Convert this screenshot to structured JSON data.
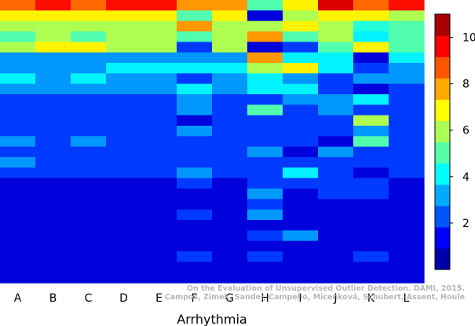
{
  "chart_data": {
    "type": "heatmap",
    "xlabel": "Arrhythmia",
    "categories": [
      "A",
      "B",
      "C",
      "D",
      "E",
      "F",
      "G",
      "H",
      "I",
      "J",
      "K",
      "L"
    ],
    "row_count": 27,
    "color_scale": {
      "min": 0,
      "max": 11,
      "ticks": [
        2,
        4,
        6,
        8,
        10
      ]
    },
    "columns": [
      {
        "name": "A",
        "values": [
          8.5,
          7,
          6,
          5,
          6,
          3,
          3,
          4,
          3,
          2,
          2,
          2,
          2,
          3,
          2,
          3,
          2,
          1,
          1,
          1,
          1,
          1,
          1,
          1,
          1,
          1,
          1
        ]
      },
      {
        "name": "B",
        "values": [
          9.5,
          7,
          6,
          6,
          7,
          3,
          3,
          3,
          3,
          2,
          2,
          2,
          2,
          2,
          2,
          2,
          2,
          1,
          1,
          1,
          1,
          1,
          1,
          1,
          1,
          1,
          1
        ]
      },
      {
        "name": "C",
        "values": [
          8.5,
          7,
          6,
          5,
          7,
          3,
          3,
          4,
          3,
          2,
          2,
          2,
          2,
          3,
          2,
          2,
          2,
          1,
          1,
          1,
          1,
          1,
          1,
          1,
          1,
          1,
          1
        ]
      },
      {
        "name": "D",
        "values": [
          9.5,
          7,
          6,
          6,
          6,
          3,
          4,
          3,
          3,
          2,
          2,
          2,
          2,
          2,
          2,
          2,
          2,
          1,
          1,
          1,
          1,
          1,
          1,
          1,
          1,
          1,
          1
        ]
      },
      {
        "name": "E",
        "values": [
          9.5,
          7,
          6,
          6,
          6,
          3,
          4,
          3,
          3,
          2,
          2,
          2,
          2,
          2,
          2,
          2,
          2,
          1,
          1,
          1,
          1,
          1,
          1,
          1,
          1,
          1,
          1
        ]
      },
      {
        "name": "F",
        "values": [
          8,
          5,
          8,
          5,
          2,
          3,
          4,
          2,
          4,
          3,
          3,
          1,
          3,
          2,
          2,
          2,
          3,
          2,
          1,
          1,
          2,
          1,
          1,
          1,
          2,
          1,
          1
        ]
      },
      {
        "name": "G",
        "values": [
          8,
          7,
          6,
          6,
          6,
          3,
          4,
          3,
          3,
          2,
          2,
          2,
          2,
          2,
          2,
          2,
          2,
          1,
          1,
          1,
          1,
          1,
          1,
          1,
          1,
          1,
          1
        ]
      },
      {
        "name": "H",
        "values": [
          5,
          1,
          6,
          8,
          1,
          8,
          6,
          4,
          4,
          2,
          5,
          2,
          2,
          2,
          3,
          2,
          2,
          2,
          3,
          2,
          3,
          1,
          2,
          1,
          2,
          1,
          1
        ]
      },
      {
        "name": "I",
        "values": [
          7,
          6,
          7,
          5,
          2,
          4,
          7,
          3,
          4,
          3,
          2,
          2,
          2,
          2,
          1,
          2,
          4,
          2,
          1,
          1,
          1,
          1,
          3,
          1,
          1,
          1,
          1
        ]
      },
      {
        "name": "J",
        "values": [
          10,
          7,
          6,
          6,
          5,
          4,
          4,
          2,
          2,
          3,
          3,
          2,
          2,
          1,
          3,
          2,
          2,
          2,
          2,
          1,
          1,
          1,
          1,
          1,
          1,
          1,
          1
        ]
      },
      {
        "name": "K",
        "values": [
          8.5,
          7,
          4.5,
          4,
          7,
          1,
          2,
          3,
          1,
          4,
          2,
          6,
          3,
          5,
          2,
          2,
          1,
          2,
          2,
          1,
          1,
          1,
          1,
          1,
          2,
          1,
          1
        ]
      },
      {
        "name": "L",
        "values": [
          9.5,
          6,
          5,
          5,
          5,
          4,
          3,
          3,
          2,
          2,
          2,
          2,
          2,
          2,
          2,
          2,
          2,
          1,
          1,
          1,
          1,
          1,
          1,
          1,
          1,
          1,
          1
        ]
      }
    ]
  },
  "watermark": {
    "line1": "On the Evaluation of Unsupervised Outlier Detection. DAMI, 2015.",
    "line2": "Campos, Zimek, Sander, Campello, Micenková, Schubert, Assent, Houle"
  }
}
